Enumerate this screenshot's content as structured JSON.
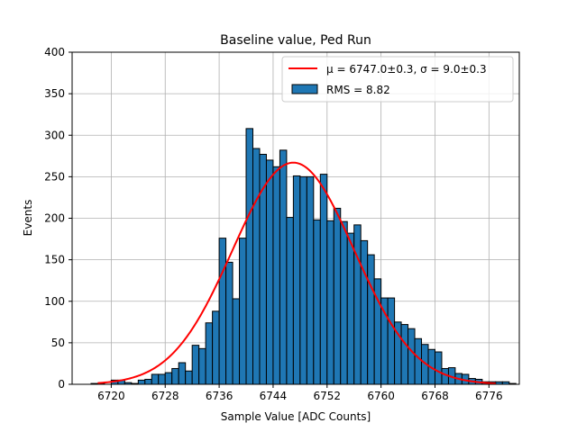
{
  "chart_data": {
    "type": "bar",
    "title": "Baseline value, Ped Run",
    "xlabel": "Sample Value [ADC Counts]",
    "ylabel": "Events",
    "xlim": [
      6714.2,
      6780.5
    ],
    "ylim": [
      0,
      400
    ],
    "grid": true,
    "legend_position": "top-right",
    "x_ticks": [
      6720,
      6728,
      6736,
      6744,
      6752,
      6760,
      6768,
      6776
    ],
    "y_ticks": [
      0,
      50,
      100,
      150,
      200,
      250,
      300,
      350,
      400
    ],
    "bin_start": 6717,
    "bin_width": 1,
    "counts": [
      1,
      1,
      0,
      5,
      5,
      2,
      1,
      5,
      6,
      12,
      12,
      14,
      19,
      26,
      16,
      47,
      43,
      74,
      88,
      176,
      147,
      103,
      176,
      308,
      284,
      277,
      270,
      262,
      282,
      201,
      251,
      250,
      250,
      198,
      253,
      197,
      212,
      196,
      182,
      192,
      173,
      156,
      127,
      104,
      104,
      75,
      72,
      67,
      55,
      48,
      42,
      39,
      19,
      20,
      13,
      12,
      7,
      6,
      3,
      3,
      3,
      3,
      1
    ],
    "series": [
      {
        "name": "RMS = 8.82",
        "kind": "histogram",
        "color": "#1f77b4"
      },
      {
        "name": "μ = 6747.0±0.3, σ = 9.0±0.3",
        "kind": "gaussian-fit",
        "color": "#ff0000",
        "mu": 6747.0,
        "sigma": 9.0,
        "amplitude": 267,
        "range": [
          6718,
          6777
        ]
      }
    ]
  },
  "legend": {
    "fit_mu_part": "μ = 6747.0±0.3",
    "fit_sigma_part": ", σ = 9.0±0.3",
    "hist_label": "RMS = 8.82"
  }
}
